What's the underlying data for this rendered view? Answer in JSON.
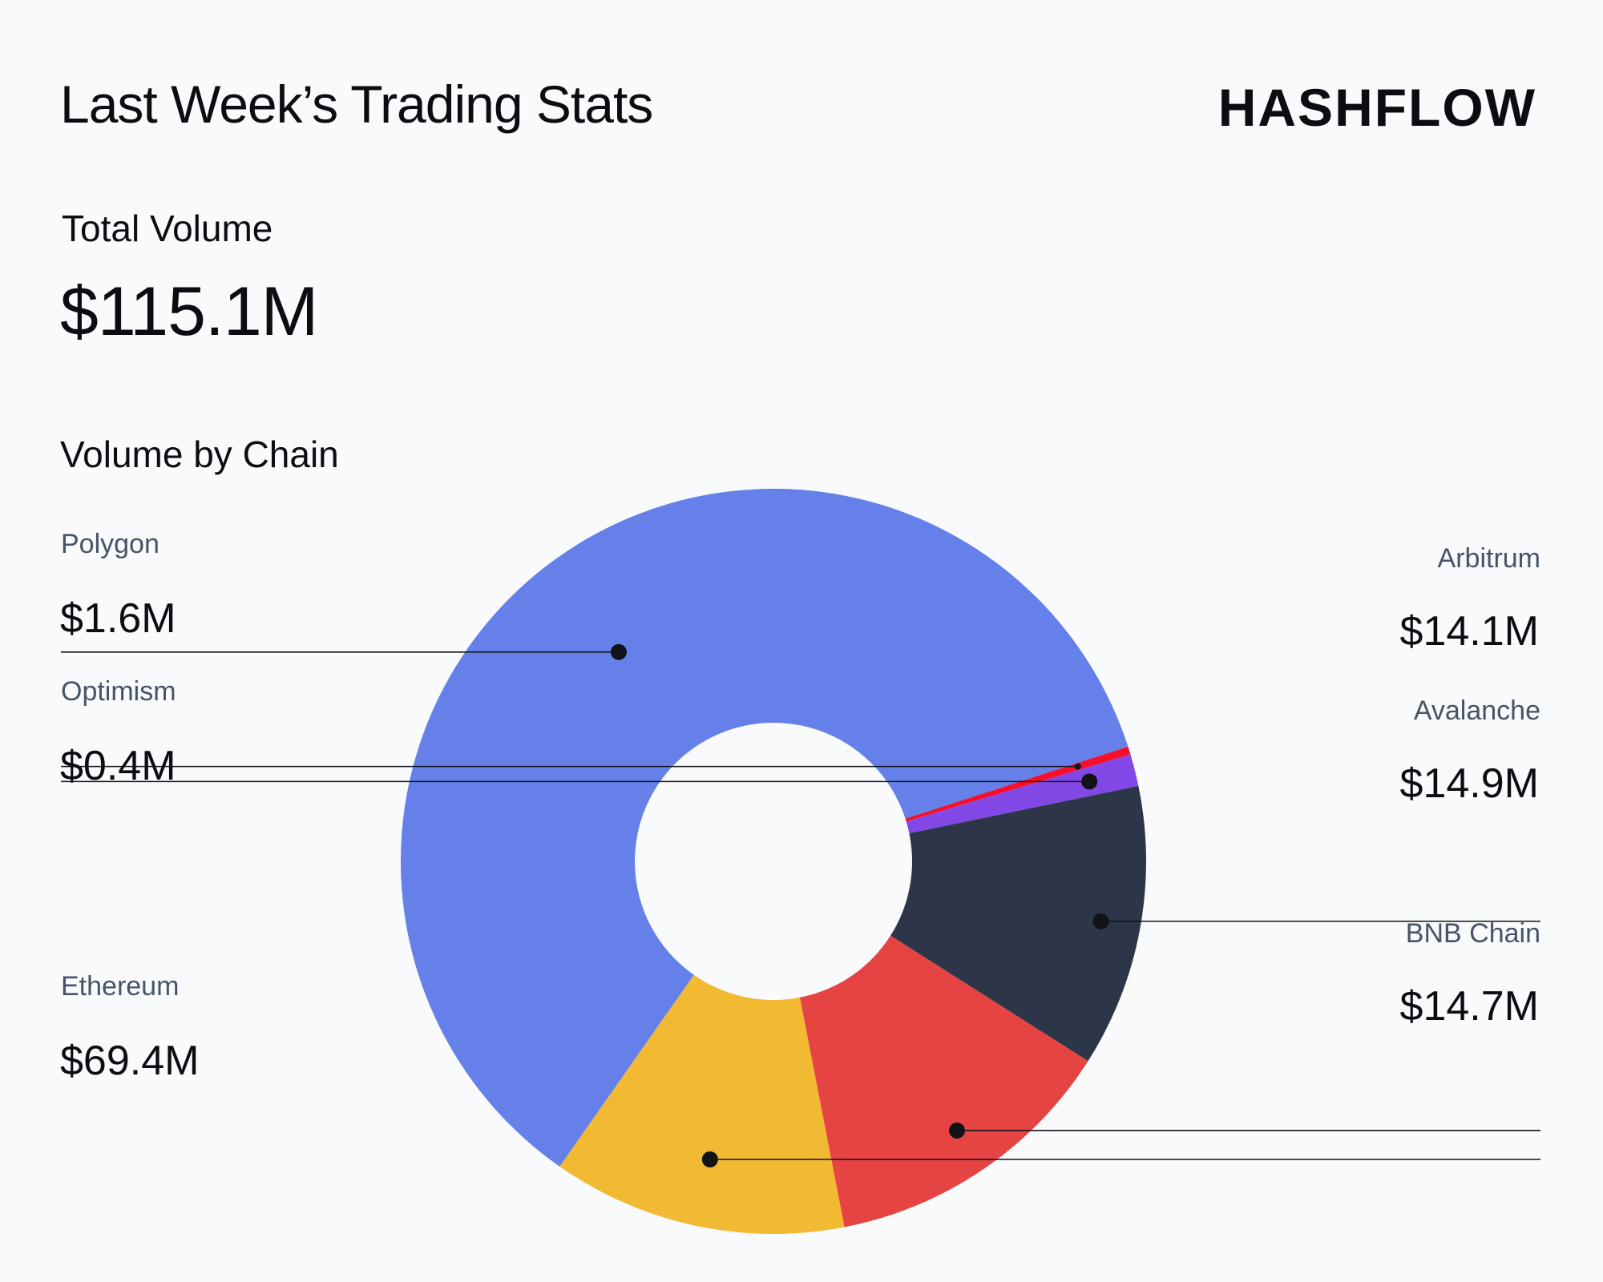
{
  "header": {
    "title": "Last Week’s Trading Stats",
    "logo": "ΗASHFLOW"
  },
  "summary": {
    "total_label": "Total Volume",
    "total_value": "$115.1M"
  },
  "chart_section": {
    "title": "Volume by Chain"
  },
  "chart_data": {
    "type": "pie",
    "donut": true,
    "title": "Volume by Chain",
    "unit": "$M",
    "categories": [
      "Ethereum",
      "Optimism",
      "Polygon",
      "Arbitrum",
      "Avalanche",
      "BNB Chain"
    ],
    "values": [
      69.4,
      0.4,
      1.6,
      14.1,
      14.9,
      14.7
    ],
    "value_labels": [
      "$69.4M",
      "$0.4M",
      "$1.6M",
      "$14.1M",
      "$14.9M",
      "$14.7M"
    ],
    "colors": [
      "#6580e9",
      "#f50f2b",
      "#8248e5",
      "#2d3548",
      "#e64343",
      "#f2b932"
    ],
    "legend": "callouts left and right"
  }
}
